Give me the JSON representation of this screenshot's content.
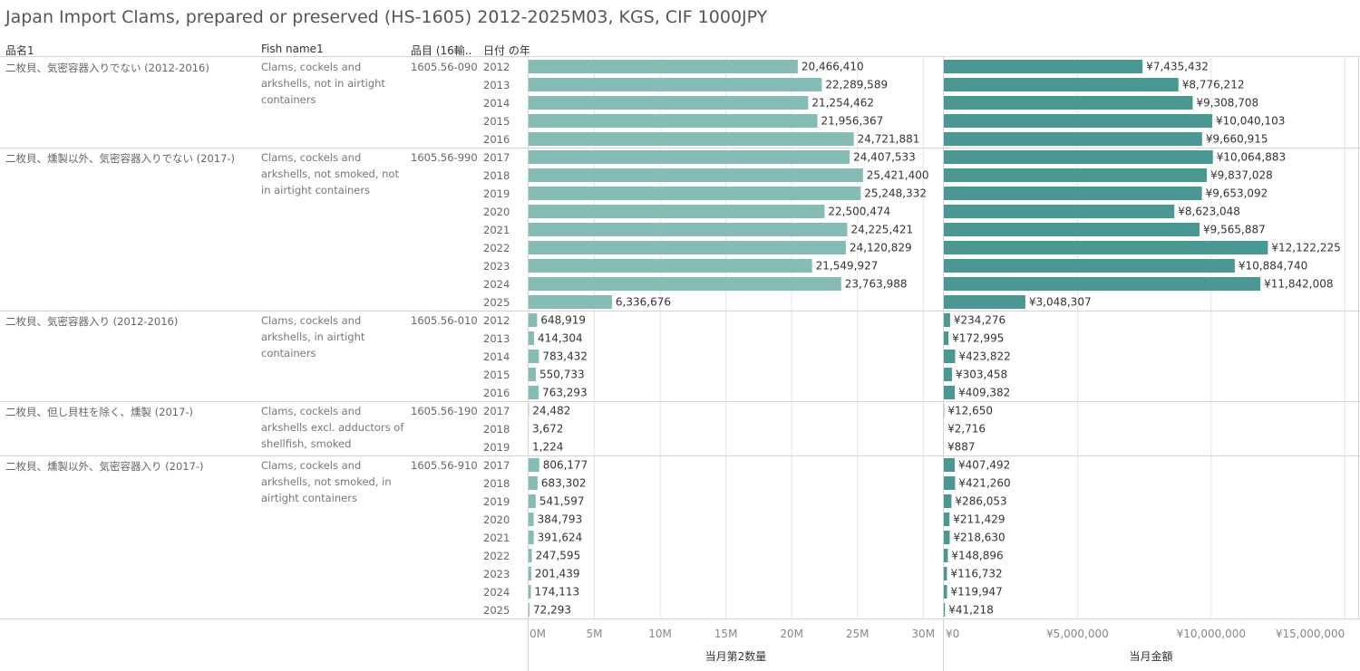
{
  "title": "Japan Import Clams, prepared or preserved (HS-1605) 2012-2025M03, KGS, CIF 1000JPY",
  "headers": {
    "col1": "品名1",
    "col2": "Fish name1",
    "col3": "品目 (16輸..",
    "col4": "日付 の年"
  },
  "colors": {
    "qty": "#86bcb6",
    "amt": "#499894",
    "grid": "#e6e6e6",
    "rule": "#d4d4d4"
  },
  "chart_data": {
    "type": "bar",
    "orientation": "horizontal",
    "grid": true,
    "axes": [
      {
        "label": "当月第2数量",
        "ticks": [
          "0M",
          "5M",
          "10M",
          "15M",
          "20M",
          "25M",
          "30M"
        ],
        "tick_values": [
          0,
          5000000,
          10000000,
          15000000,
          20000000,
          25000000,
          30000000
        ],
        "range": [
          0,
          31500000
        ]
      },
      {
        "label": "当月金額",
        "ticks": [
          "¥0",
          "¥5,000,000",
          "¥10,000,000",
          "¥15,000,000"
        ],
        "tick_values": [
          0,
          5000000,
          10000000,
          15000000
        ],
        "range": [
          0,
          15500000
        ]
      }
    ],
    "groups": [
      {
        "name": "二枚貝、気密容器入りでない (2012-2016)",
        "fish": "Clams, cockels and arkshells, not in airtight containers",
        "code": "1605.56-090",
        "rows": [
          {
            "year": "2012",
            "qty": 20466410,
            "qty_label": "20,466,410",
            "amt": 7435432,
            "amt_label": "¥7,435,432"
          },
          {
            "year": "2013",
            "qty": 22289589,
            "qty_label": "22,289,589",
            "amt": 8776212,
            "amt_label": "¥8,776,212"
          },
          {
            "year": "2014",
            "qty": 21254462,
            "qty_label": "21,254,462",
            "amt": 9308708,
            "amt_label": "¥9,308,708"
          },
          {
            "year": "2015",
            "qty": 21956367,
            "qty_label": "21,956,367",
            "amt": 10040103,
            "amt_label": "¥10,040,103"
          },
          {
            "year": "2016",
            "qty": 24721881,
            "qty_label": "24,721,881",
            "amt": 9660915,
            "amt_label": "¥9,660,915"
          }
        ]
      },
      {
        "name": "二枚貝、燻製以外、気密容器入りでない (2017-)",
        "fish": "Clams, cockels and arkshells, not smoked, not in airtight containers",
        "code": "1605.56-990",
        "rows": [
          {
            "year": "2017",
            "qty": 24407533,
            "qty_label": "24,407,533",
            "amt": 10064883,
            "amt_label": "¥10,064,883"
          },
          {
            "year": "2018",
            "qty": 25421400,
            "qty_label": "25,421,400",
            "amt": 9837028,
            "amt_label": "¥9,837,028"
          },
          {
            "year": "2019",
            "qty": 25248332,
            "qty_label": "25,248,332",
            "amt": 9653092,
            "amt_label": "¥9,653,092"
          },
          {
            "year": "2020",
            "qty": 22500474,
            "qty_label": "22,500,474",
            "amt": 8623048,
            "amt_label": "¥8,623,048"
          },
          {
            "year": "2021",
            "qty": 24225421,
            "qty_label": "24,225,421",
            "amt": 9565887,
            "amt_label": "¥9,565,887"
          },
          {
            "year": "2022",
            "qty": 24120829,
            "qty_label": "24,120,829",
            "amt": 12122225,
            "amt_label": "¥12,122,225"
          },
          {
            "year": "2023",
            "qty": 21549927,
            "qty_label": "21,549,927",
            "amt": 10884740,
            "amt_label": "¥10,884,740"
          },
          {
            "year": "2024",
            "qty": 23763988,
            "qty_label": "23,763,988",
            "amt": 11842008,
            "amt_label": "¥11,842,008"
          },
          {
            "year": "2025",
            "qty": 6336676,
            "qty_label": "6,336,676",
            "amt": 3048307,
            "amt_label": "¥3,048,307"
          }
        ]
      },
      {
        "name": "二枚貝、気密容器入り (2012-2016)",
        "fish": "Clams, cockels and arkshells, in airtight containers",
        "code": "1605.56-010",
        "rows": [
          {
            "year": "2012",
            "qty": 648919,
            "qty_label": "648,919",
            "amt": 234276,
            "amt_label": "¥234,276"
          },
          {
            "year": "2013",
            "qty": 414304,
            "qty_label": "414,304",
            "amt": 172995,
            "amt_label": "¥172,995"
          },
          {
            "year": "2014",
            "qty": 783432,
            "qty_label": "783,432",
            "amt": 423822,
            "amt_label": "¥423,822"
          },
          {
            "year": "2015",
            "qty": 550733,
            "qty_label": "550,733",
            "amt": 303458,
            "amt_label": "¥303,458"
          },
          {
            "year": "2016",
            "qty": 763293,
            "qty_label": "763,293",
            "amt": 409382,
            "amt_label": "¥409,382"
          }
        ]
      },
      {
        "name": "二枚貝、但し貝柱を除く、燻製 (2017-)",
        "fish": "Clams, cockels and arkshells excl. adductors of shellfish, smoked",
        "code": "1605.56-190",
        "rows": [
          {
            "year": "2017",
            "qty": 24482,
            "qty_label": "24,482",
            "amt": 12650,
            "amt_label": "¥12,650"
          },
          {
            "year": "2018",
            "qty": 3672,
            "qty_label": "3,672",
            "amt": 2716,
            "amt_label": "¥2,716"
          },
          {
            "year": "2019",
            "qty": 1224,
            "qty_label": "1,224",
            "amt": 887,
            "amt_label": "¥887"
          }
        ]
      },
      {
        "name": "二枚貝、燻製以外、気密容器入り (2017-)",
        "fish": "Clams, cockels and arkshells, not smoked, in airtight containers",
        "code": "1605.56-910",
        "rows": [
          {
            "year": "2017",
            "qty": 806177,
            "qty_label": "806,177",
            "amt": 407492,
            "amt_label": "¥407,492"
          },
          {
            "year": "2018",
            "qty": 683302,
            "qty_label": "683,302",
            "amt": 421260,
            "amt_label": "¥421,260"
          },
          {
            "year": "2019",
            "qty": 541597,
            "qty_label": "541,597",
            "amt": 286053,
            "amt_label": "¥286,053"
          },
          {
            "year": "2020",
            "qty": 384793,
            "qty_label": "384,793",
            "amt": 211429,
            "amt_label": "¥211,429"
          },
          {
            "year": "2021",
            "qty": 391624,
            "qty_label": "391,624",
            "amt": 218630,
            "amt_label": "¥218,630"
          },
          {
            "year": "2022",
            "qty": 247595,
            "qty_label": "247,595",
            "amt": 148896,
            "amt_label": "¥148,896"
          },
          {
            "year": "2023",
            "qty": 201439,
            "qty_label": "201,439",
            "amt": 116732,
            "amt_label": "¥116,732"
          },
          {
            "year": "2024",
            "qty": 174113,
            "qty_label": "174,113",
            "amt": 119947,
            "amt_label": "¥119,947"
          },
          {
            "year": "2025",
            "qty": 72293,
            "qty_label": "72,293",
            "amt": 41218,
            "amt_label": "¥41,218"
          }
        ]
      }
    ]
  }
}
